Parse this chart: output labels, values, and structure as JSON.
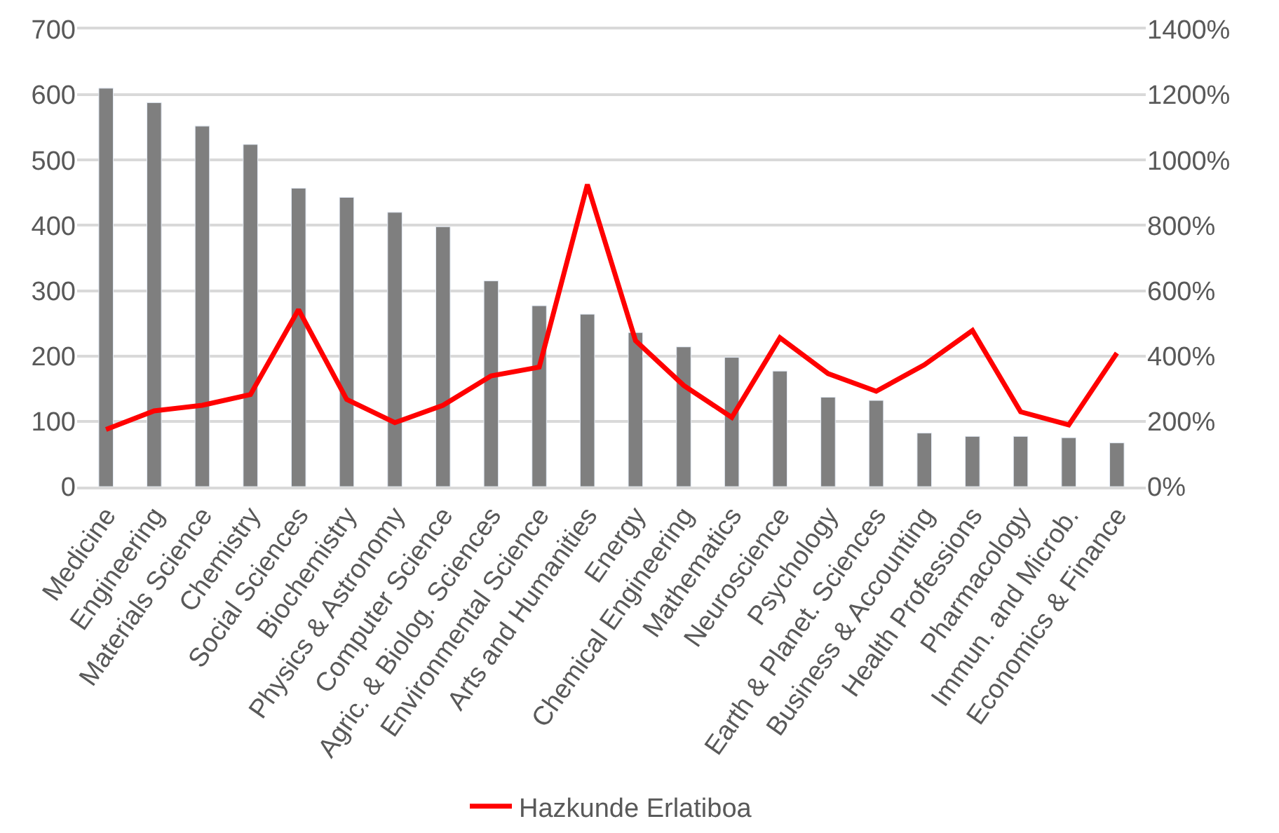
{
  "chart_data": {
    "type": "bar",
    "categories": [
      "Medicine",
      "Engineering",
      "Materials Science",
      "Chemistry",
      "Social Sciences",
      "Biochemistry",
      "Physics & Astronomy",
      "Computer Science",
      "Agric. & Biolog. Sciences",
      "Environmental Science",
      "Arts and Humanities",
      "Energy",
      "Chemical Engineering",
      "Mathematics",
      "Neuroscience",
      "Psychology",
      "Earth & Planet. Sciences",
      "Business & Accounting",
      "Health Professions",
      "Pharmacology",
      "Immun. and Microb.",
      "Economics & Finance"
    ],
    "series": [
      {
        "color": "#7f7f7f",
        "values": [
          610,
          588,
          552,
          524,
          457,
          443,
          420,
          398,
          315,
          277,
          264,
          236,
          214,
          198,
          177,
          137,
          132,
          82,
          77,
          77,
          75,
          67
        ]
      },
      {
        "type": "line",
        "name": "Hazkunde Erlatiboa",
        "color": "#ff0000",
        "axis": "y2",
        "values": [
          175,
          232,
          249,
          282,
          542,
          267,
          196,
          249,
          339,
          366,
          925,
          447,
          310,
          212,
          456,
          346,
          292,
          373,
          478,
          229,
          189,
          409
        ]
      }
    ],
    "ylim": [
      0,
      700
    ],
    "yticks": [
      0,
      100,
      200,
      300,
      400,
      500,
      600,
      700
    ],
    "y2lim": [
      0,
      1400
    ],
    "y2ticks": [
      {
        "value": 0,
        "label": "0%"
      },
      {
        "value": 200,
        "label": "200%"
      },
      {
        "value": 400,
        "label": "400%"
      },
      {
        "value": 600,
        "label": "600%"
      },
      {
        "value": 800,
        "label": "800%"
      },
      {
        "value": 1000,
        "label": "1000%"
      },
      {
        "value": 1200,
        "label": "1200%"
      },
      {
        "value": 1400,
        "label": "1400%"
      }
    ],
    "grid": "y",
    "legend": "bottom",
    "marker": "none",
    "line_style": "solid"
  }
}
